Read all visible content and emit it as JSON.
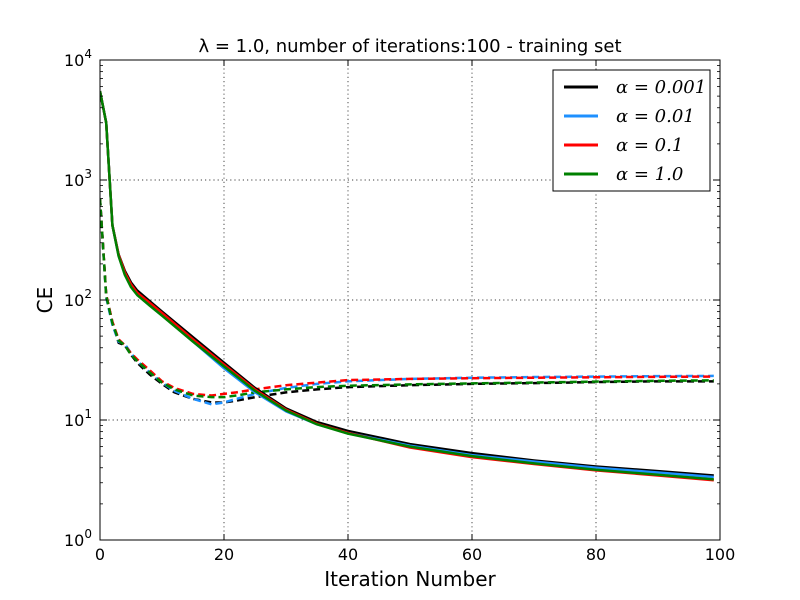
{
  "chart_data": {
    "type": "line",
    "title": "λ = 1.0, number of iterations:100 - training set",
    "xlabel": "Iteration Number",
    "ylabel": "CE",
    "xlim": [
      0,
      100
    ],
    "ylim": [
      1,
      10000
    ],
    "yscale": "log",
    "grid": true,
    "legend_position": "top-right",
    "x_ticks": [
      0,
      20,
      40,
      60,
      80,
      100
    ],
    "y_ticks": [
      {
        "value": 1,
        "base": "10",
        "exp": "0"
      },
      {
        "value": 10,
        "base": "10",
        "exp": "1"
      },
      {
        "value": 100,
        "base": "10",
        "exp": "2"
      },
      {
        "value": 1000,
        "base": "10",
        "exp": "3"
      },
      {
        "value": 10000,
        "base": "10",
        "exp": "4"
      }
    ],
    "series": [
      {
        "name": "α = 0.001",
        "color": "#000000",
        "style": "solid",
        "points": [
          [
            0,
            5500
          ],
          [
            1,
            3000
          ],
          [
            2,
            420
          ],
          [
            3,
            240
          ],
          [
            4,
            175
          ],
          [
            5,
            140
          ],
          [
            6,
            120
          ],
          [
            8,
            98
          ],
          [
            10,
            80
          ],
          [
            15,
            49
          ],
          [
            20,
            30
          ],
          [
            25,
            18.5
          ],
          [
            30,
            12.5
          ],
          [
            35,
            9.6
          ],
          [
            40,
            8.1
          ],
          [
            50,
            6.3
          ],
          [
            60,
            5.3
          ],
          [
            70,
            4.6
          ],
          [
            80,
            4.1
          ],
          [
            90,
            3.75
          ],
          [
            99,
            3.45
          ]
        ]
      },
      {
        "name": "α = 0.01",
        "color": "#1e90ff",
        "style": "solid",
        "points": [
          [
            0,
            5500
          ],
          [
            1,
            3000
          ],
          [
            2,
            420
          ],
          [
            3,
            235
          ],
          [
            4,
            165
          ],
          [
            5,
            130
          ],
          [
            6,
            112
          ],
          [
            8,
            92
          ],
          [
            10,
            75
          ],
          [
            15,
            45
          ],
          [
            20,
            27
          ],
          [
            25,
            17
          ],
          [
            30,
            11.8
          ],
          [
            35,
            9.2
          ],
          [
            40,
            7.8
          ],
          [
            50,
            6.1
          ],
          [
            60,
            5.1
          ],
          [
            70,
            4.5
          ],
          [
            80,
            4.0
          ],
          [
            90,
            3.65
          ],
          [
            99,
            3.35
          ]
        ]
      },
      {
        "name": "α = 0.1",
        "color": "#ff0000",
        "style": "solid",
        "points": [
          [
            0,
            5500
          ],
          [
            1,
            3000
          ],
          [
            2,
            420
          ],
          [
            3,
            238
          ],
          [
            4,
            170
          ],
          [
            5,
            135
          ],
          [
            6,
            115
          ],
          [
            8,
            95
          ],
          [
            10,
            78
          ],
          [
            15,
            47
          ],
          [
            20,
            29
          ],
          [
            25,
            18
          ],
          [
            30,
            12.2
          ],
          [
            35,
            9.3
          ],
          [
            40,
            7.8
          ],
          [
            50,
            5.9
          ],
          [
            60,
            4.9
          ],
          [
            70,
            4.3
          ],
          [
            80,
            3.8
          ],
          [
            90,
            3.45
          ],
          [
            99,
            3.15
          ]
        ]
      },
      {
        "name": "α = 1.0",
        "color": "#008000",
        "style": "solid",
        "points": [
          [
            0,
            5500
          ],
          [
            1,
            3000
          ],
          [
            2,
            420
          ],
          [
            3,
            232
          ],
          [
            4,
            162
          ],
          [
            5,
            128
          ],
          [
            6,
            110
          ],
          [
            8,
            90
          ],
          [
            10,
            74
          ],
          [
            15,
            45
          ],
          [
            20,
            28
          ],
          [
            25,
            17.5
          ],
          [
            30,
            12
          ],
          [
            35,
            9.2
          ],
          [
            40,
            7.7
          ],
          [
            50,
            6.0
          ],
          [
            60,
            5.0
          ],
          [
            70,
            4.35
          ],
          [
            80,
            3.85
          ],
          [
            90,
            3.5
          ],
          [
            99,
            3.2
          ]
        ]
      },
      {
        "name": "",
        "color": "#000000",
        "style": "dashed",
        "points": [
          [
            0,
            700
          ],
          [
            1,
            110
          ],
          [
            2,
            65
          ],
          [
            3,
            44
          ],
          [
            4,
            42
          ],
          [
            5,
            35
          ],
          [
            6,
            30
          ],
          [
            8,
            24
          ],
          [
            10,
            20
          ],
          [
            12,
            17
          ],
          [
            15,
            15
          ],
          [
            18,
            14
          ],
          [
            20,
            14
          ],
          [
            22,
            14.5
          ],
          [
            25,
            15.5
          ],
          [
            30,
            17
          ],
          [
            35,
            18
          ],
          [
            40,
            18.8
          ],
          [
            50,
            19.5
          ],
          [
            60,
            20
          ],
          [
            70,
            20.3
          ],
          [
            80,
            20.7
          ],
          [
            90,
            21
          ],
          [
            99,
            21
          ]
        ]
      },
      {
        "name": "",
        "color": "#1e90ff",
        "style": "dashed",
        "points": [
          [
            0,
            700
          ],
          [
            1,
            105
          ],
          [
            2,
            62
          ],
          [
            3,
            45
          ],
          [
            4,
            43
          ],
          [
            5,
            36
          ],
          [
            6,
            31
          ],
          [
            8,
            25
          ],
          [
            10,
            20.5
          ],
          [
            12,
            17.5
          ],
          [
            15,
            15
          ],
          [
            18,
            13.5
          ],
          [
            20,
            14
          ],
          [
            22,
            15
          ],
          [
            25,
            16.5
          ],
          [
            30,
            18.5
          ],
          [
            35,
            20
          ],
          [
            40,
            21
          ],
          [
            50,
            22
          ],
          [
            60,
            22.5
          ],
          [
            70,
            22.8
          ],
          [
            80,
            23
          ],
          [
            90,
            23.2
          ],
          [
            99,
            23.3
          ]
        ]
      },
      {
        "name": "",
        "color": "#ff0000",
        "style": "dashed",
        "points": [
          [
            0,
            700
          ],
          [
            1,
            110
          ],
          [
            2,
            66
          ],
          [
            3,
            47
          ],
          [
            4,
            42
          ],
          [
            5,
            36
          ],
          [
            6,
            32
          ],
          [
            8,
            26
          ],
          [
            10,
            21
          ],
          [
            12,
            18.5
          ],
          [
            15,
            16.5
          ],
          [
            18,
            16
          ],
          [
            20,
            16.5
          ],
          [
            22,
            17
          ],
          [
            25,
            18
          ],
          [
            30,
            19.5
          ],
          [
            35,
            20.5
          ],
          [
            40,
            21.5
          ],
          [
            50,
            22
          ],
          [
            60,
            22.3
          ],
          [
            70,
            22.5
          ],
          [
            80,
            22.7
          ],
          [
            90,
            22.9
          ],
          [
            99,
            23
          ]
        ]
      },
      {
        "name": "",
        "color": "#008000",
        "style": "dashed",
        "points": [
          [
            0,
            700
          ],
          [
            1,
            108
          ],
          [
            2,
            64
          ],
          [
            3,
            46
          ],
          [
            4,
            42
          ],
          [
            5,
            35
          ],
          [
            6,
            31
          ],
          [
            8,
            25
          ],
          [
            10,
            20.5
          ],
          [
            12,
            18
          ],
          [
            15,
            16
          ],
          [
            18,
            15.5
          ],
          [
            20,
            15.5
          ],
          [
            22,
            16
          ],
          [
            25,
            17
          ],
          [
            30,
            18
          ],
          [
            35,
            18.8
          ],
          [
            40,
            19.3
          ],
          [
            50,
            19.8
          ],
          [
            60,
            20.2
          ],
          [
            70,
            20.5
          ],
          [
            80,
            20.9
          ],
          [
            90,
            21.2
          ],
          [
            99,
            21.4
          ]
        ]
      }
    ]
  }
}
